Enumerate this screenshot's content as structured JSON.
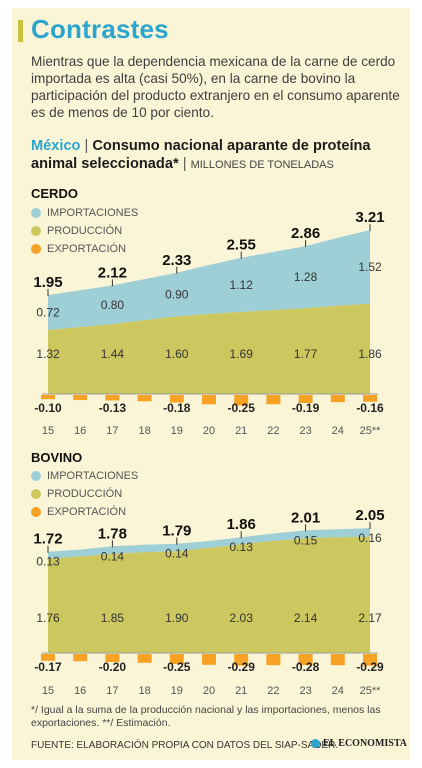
{
  "title": "Contrastes",
  "intro": "Mientras que la dependencia mexicana de la carne de cerdo importada es alta (casi 50%), en la carne de bovino la participación del producto extranjero en el consumo aparente es de menos de 10 por ciento.",
  "heading": {
    "country": "México",
    "separator": " | ",
    "text": "Consumo nacional aparante de proteína animal seleccionada*",
    "units": "MILLONES DE TONELADAS"
  },
  "colors": {
    "importaciones": "#9fcfd6",
    "produccion": "#ccc85f",
    "exportacion": "#f7a125",
    "card": "#faf5d6",
    "accent": "#2aa5cf"
  },
  "legend": {
    "importaciones": "IMPORTACIONES",
    "produccion": "PRODUCCIÓN",
    "exportacion": "EXPORTACIÓN"
  },
  "chart_data": [
    {
      "type": "area",
      "title": "CERDO",
      "x": [
        "15",
        "16",
        "17",
        "18",
        "19",
        "20",
        "21",
        "22",
        "23",
        "24",
        "25**"
      ],
      "series": [
        {
          "name": "PRODUCCIÓN",
          "values": [
            1.32,
            1.38,
            1.44,
            1.52,
            1.6,
            1.65,
            1.69,
            1.73,
            1.77,
            1.82,
            1.86
          ]
        },
        {
          "name": "IMPORTACIONES",
          "values": [
            0.72,
            0.76,
            0.8,
            0.85,
            0.9,
            1.01,
            1.12,
            1.2,
            1.28,
            1.4,
            1.52
          ]
        },
        {
          "name": "EXPORTACIÓN",
          "values": [
            -0.1,
            -0.12,
            -0.13,
            -0.15,
            -0.18,
            -0.22,
            -0.25,
            -0.22,
            -0.19,
            -0.17,
            -0.16
          ]
        }
      ],
      "totals": {
        "labels": [
          "1.95",
          "2.12",
          "2.33",
          "2.55",
          "2.86",
          "3.21"
        ],
        "positions": [
          0,
          2,
          4,
          6,
          8,
          10
        ]
      },
      "labels": {
        "produccion": [
          "1.32",
          "1.44",
          "1.60",
          "1.69",
          "1.77",
          "1.86"
        ],
        "importaciones": [
          "0.72",
          "0.80",
          "0.90",
          "1.12",
          "1.28",
          "1.52"
        ],
        "exportacion": [
          "-0.10",
          "-0.13",
          "-0.18",
          "-0.25",
          "-0.19",
          "-0.16"
        ]
      }
    },
    {
      "type": "area",
      "title": "BOVINO",
      "x": [
        "15",
        "16",
        "17",
        "18",
        "19",
        "20",
        "21",
        "22",
        "23",
        "24",
        "25**"
      ],
      "series": [
        {
          "name": "PRODUCCIÓN",
          "values": [
            1.76,
            1.8,
            1.85,
            1.88,
            1.9,
            1.96,
            2.03,
            2.09,
            2.14,
            2.16,
            2.17
          ]
        },
        {
          "name": "IMPORTACIONES",
          "values": [
            0.13,
            0.13,
            0.14,
            0.14,
            0.14,
            0.13,
            0.13,
            0.14,
            0.15,
            0.15,
            0.16
          ]
        },
        {
          "name": "EXPORTACIÓN",
          "values": [
            -0.17,
            -0.18,
            -0.2,
            -0.22,
            -0.25,
            -0.27,
            -0.29,
            -0.28,
            -0.28,
            -0.28,
            -0.29
          ]
        }
      ],
      "totals": {
        "labels": [
          "1.72",
          "1.78",
          "1.79",
          "1.86",
          "2.01",
          "2.05"
        ],
        "positions": [
          0,
          2,
          4,
          6,
          8,
          10
        ]
      },
      "labels": {
        "produccion": [
          "1.76",
          "1.85",
          "1.90",
          "2.03",
          "2.14",
          "2.17"
        ],
        "importaciones": [
          "0.13",
          "0.14",
          "0.14",
          "0.13",
          "0.15",
          "0.16"
        ],
        "exportacion": [
          "-0.17",
          "-0.20",
          "-0.25",
          "-0.29",
          "-0.28",
          "-0.29"
        ]
      }
    }
  ],
  "footnote": "*/ Igual a la suma de la producción nacional y las importaciones, menos las exportaciones. **/ Estimación.",
  "source": "FUENTE: ELABORACIÓN PROPIA CON DATOS DEL SIAP-SADER.",
  "brand": "EL ECONOMISTA"
}
